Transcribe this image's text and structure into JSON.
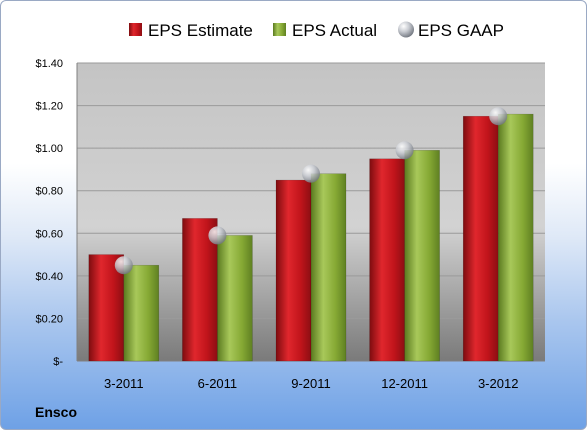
{
  "company": "Ensco",
  "chart_data": {
    "type": "bar",
    "categories": [
      "3-2011",
      "6-2011",
      "9-2011",
      "12-2011",
      "3-2012"
    ],
    "series": [
      {
        "name": "EPS Estimate",
        "kind": "bar",
        "values": [
          0.5,
          0.67,
          0.85,
          0.95,
          1.15
        ],
        "color": "#c1141b"
      },
      {
        "name": "EPS Actual",
        "kind": "bar",
        "values": [
          0.45,
          0.59,
          0.88,
          0.99,
          1.16
        ],
        "color": "#86a934"
      },
      {
        "name": "EPS GAAP",
        "kind": "marker",
        "values": [
          0.45,
          0.59,
          0.88,
          0.99,
          1.15
        ],
        "color": "#b8bcc4"
      }
    ],
    "yticks": [
      "$-",
      "$0.20",
      "$0.40",
      "$0.60",
      "$0.80",
      "$1.00",
      "$1.20",
      "$1.40"
    ],
    "ylim": [
      0,
      1.4
    ],
    "grid": true,
    "legend": "top"
  }
}
